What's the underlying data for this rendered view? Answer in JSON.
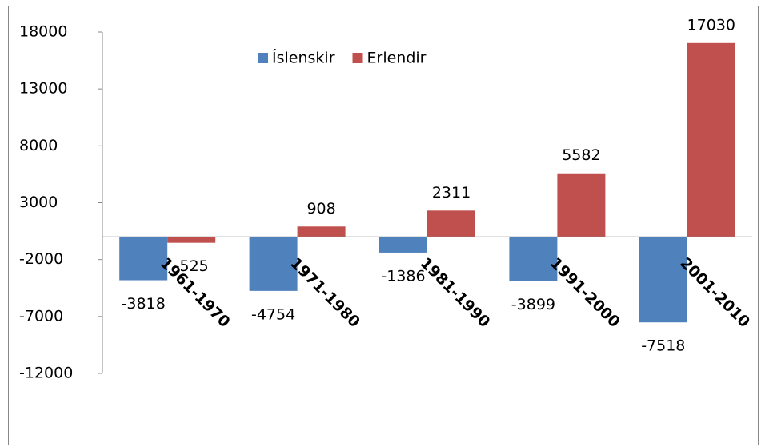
{
  "chart_data": {
    "type": "bar",
    "categories": [
      "1961-1970",
      "1971-1980",
      "1981-1990",
      "1991-2000",
      "2001-2010"
    ],
    "series": [
      {
        "name": "Íslenskir",
        "color": "#4f81bd",
        "values": [
          -3818,
          -4754,
          -1386,
          -3899,
          -7518
        ]
      },
      {
        "name": "Erlendir",
        "color": "#c0504d",
        "values": [
          -525,
          908,
          2311,
          5582,
          17030
        ]
      }
    ],
    "ylim": [
      -12000,
      18000
    ],
    "yticks": [
      -12000,
      -7000,
      -2000,
      3000,
      8000,
      13000,
      18000
    ],
    "legend": "top"
  }
}
